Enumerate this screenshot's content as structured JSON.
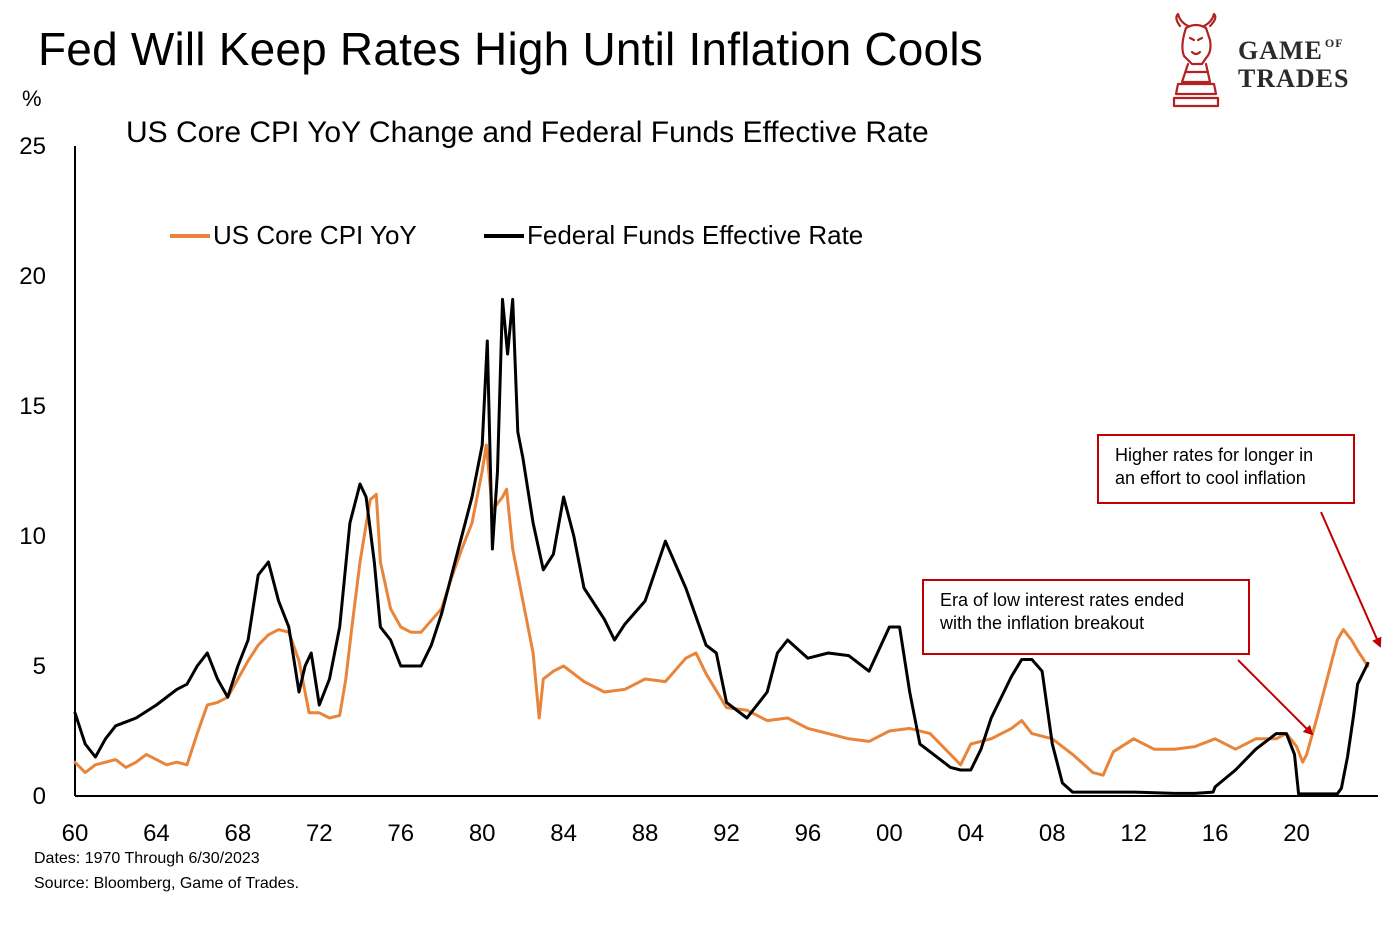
{
  "title": "Fed Will Keep Rates High Until Inflation Cools",
  "subtitle": "US Core CPI YoY Change and Federal Funds Effective Rate",
  "y_unit": "%",
  "notes": {
    "dates": "Dates: 1970 Through 6/30/2023",
    "source": "Source: Bloomberg, Game of Trades."
  },
  "logo": {
    "line1": "GAME",
    "of": "OF",
    "line2": "TRADES",
    "icon": "bull-knight-chess-icon"
  },
  "callouts": {
    "higher_rates": [
      "Higher rates for longer in",
      "an effort to cool inflation"
    ],
    "low_rates": [
      "Era of low interest rates ended",
      "with the inflation breakout"
    ]
  },
  "colors": {
    "cpi": "#E8853A",
    "ffr": "#000000",
    "annotation": "#C00000",
    "logo": "#B22222"
  },
  "chart_data": {
    "type": "line",
    "title": "US Core CPI YoY Change and Federal Funds Effective Rate",
    "xlabel": "",
    "ylabel": "%",
    "xlim": [
      1960,
      2024
    ],
    "ylim": [
      0,
      25
    ],
    "x_ticks": [
      1960,
      1964,
      1968,
      1972,
      1976,
      1980,
      1984,
      1988,
      1992,
      1996,
      2000,
      2004,
      2008,
      2012,
      2016,
      2020
    ],
    "x_tick_labels": [
      "60",
      "64",
      "68",
      "72",
      "76",
      "80",
      "84",
      "88",
      "92",
      "96",
      "00",
      "04",
      "08",
      "12",
      "16",
      "20"
    ],
    "y_ticks": [
      0,
      5,
      10,
      15,
      20,
      25
    ],
    "y_tick_labels": [
      "0",
      "5",
      "10",
      "15",
      "20",
      "25"
    ],
    "legend_position": "top-left",
    "series": [
      {
        "name": "US Core CPI YoY",
        "color": "#E8853A",
        "x": [
          1960,
          1960.5,
          1961,
          1962,
          1962.5,
          1963,
          1963.5,
          1964,
          1964.5,
          1965,
          1965.5,
          1966,
          1966.5,
          1967,
          1967.5,
          1968,
          1968.5,
          1969,
          1969.5,
          1970,
          1970.5,
          1971,
          1971.5,
          1972,
          1972.5,
          1973,
          1973.3,
          1973.6,
          1974,
          1974.5,
          1974.8,
          1975,
          1975.5,
          1976,
          1976.5,
          1977,
          1978,
          1978.5,
          1979,
          1979.5,
          1980,
          1980.2,
          1980.5,
          1981,
          1981.2,
          1981.5,
          1982,
          1982.5,
          1982.8,
          1983,
          1983.5,
          1984,
          1985,
          1986,
          1987,
          1988,
          1989,
          1990,
          1990.5,
          1991,
          1992,
          1993,
          1994,
          1995,
          1996,
          1997,
          1998,
          1999,
          2000,
          2001,
          2002,
          2003,
          2003.5,
          2004,
          2005,
          2006,
          2006.5,
          2007,
          2008,
          2009,
          2010,
          2010.5,
          2011,
          2012,
          2013,
          2014,
          2015,
          2016,
          2017,
          2018,
          2019,
          2019.5,
          2020,
          2020.3,
          2020.5,
          2021,
          2021.5,
          2022,
          2022.3,
          2022.7,
          2023,
          2023.5
        ],
        "values": [
          1.3,
          0.9,
          1.2,
          1.4,
          1.1,
          1.3,
          1.6,
          1.4,
          1.2,
          1.3,
          1.2,
          2.4,
          3.5,
          3.6,
          3.8,
          4.5,
          5.2,
          5.8,
          6.2,
          6.4,
          6.3,
          5.2,
          3.2,
          3.2,
          3.0,
          3.1,
          4.5,
          6.5,
          9.0,
          11.4,
          11.6,
          9.0,
          7.2,
          6.5,
          6.3,
          6.3,
          7.2,
          8.4,
          9.5,
          10.5,
          12.5,
          13.5,
          11.0,
          11.5,
          11.8,
          9.5,
          7.5,
          5.5,
          3.0,
          4.5,
          4.8,
          5.0,
          4.4,
          4.0,
          4.1,
          4.5,
          4.4,
          5.3,
          5.5,
          4.7,
          3.4,
          3.3,
          2.9,
          3.0,
          2.6,
          2.4,
          2.2,
          2.1,
          2.5,
          2.6,
          2.4,
          1.6,
          1.2,
          2.0,
          2.2,
          2.6,
          2.9,
          2.4,
          2.2,
          1.6,
          0.9,
          0.8,
          1.7,
          2.2,
          1.8,
          1.8,
          1.9,
          2.2,
          1.8,
          2.2,
          2.2,
          2.4,
          1.9,
          1.3,
          1.6,
          3.0,
          4.5,
          6.0,
          6.4,
          6.0,
          5.6,
          5.0
        ]
      },
      {
        "name": "Federal Funds Effective Rate",
        "color": "#000000",
        "x": [
          1960,
          1960.5,
          1961,
          1961.5,
          1962,
          1963,
          1964,
          1965,
          1965.5,
          1966,
          1966.5,
          1967,
          1967.5,
          1968,
          1968.5,
          1969,
          1969.5,
          1970,
          1970.5,
          1971,
          1971.3,
          1971.6,
          1972,
          1972.5,
          1973,
          1973.5,
          1974,
          1974.3,
          1974.7,
          1975,
          1975.5,
          1976,
          1976.5,
          1977,
          1977.5,
          1978,
          1978.5,
          1979,
          1979.5,
          1980,
          1980.25,
          1980.5,
          1980.75,
          1981,
          1981.25,
          1981.5,
          1981.75,
          1982,
          1982.5,
          1983,
          1983.5,
          1984,
          1984.5,
          1985,
          1986,
          1986.5,
          1987,
          1988,
          1989,
          1989.5,
          1990,
          1991,
          1991.5,
          1992,
          1993,
          1994,
          1994.5,
          1995,
          1996,
          1997,
          1998,
          1999,
          2000,
          2000.5,
          2001,
          2001.5,
          2002,
          2003,
          2003.5,
          2004,
          2004.5,
          2005,
          2006,
          2006.5,
          2007,
          2007.5,
          2008,
          2008.5,
          2009,
          2010,
          2012,
          2014,
          2015,
          2015.9,
          2016,
          2017,
          2018,
          2019,
          2019.5,
          2019.9,
          2020.1,
          2021,
          2022,
          2022.2,
          2022.5,
          2022.8,
          2023,
          2023.5
        ],
        "values": [
          3.2,
          2.0,
          1.5,
          2.2,
          2.7,
          3.0,
          3.5,
          4.1,
          4.3,
          5.0,
          5.5,
          4.5,
          3.8,
          5.0,
          6.0,
          8.5,
          9.0,
          7.5,
          6.5,
          4.0,
          5.0,
          5.5,
          3.5,
          4.5,
          6.5,
          10.5,
          12.0,
          11.5,
          9.0,
          6.5,
          6.0,
          5.0,
          5.0,
          5.0,
          5.8,
          7.0,
          8.5,
          10.0,
          11.5,
          13.5,
          17.5,
          9.5,
          12.5,
          19.1,
          17.0,
          19.1,
          14.0,
          13.0,
          10.5,
          8.7,
          9.3,
          11.5,
          10.0,
          8.0,
          6.8,
          6.0,
          6.6,
          7.5,
          9.8,
          8.9,
          8.0,
          5.8,
          5.5,
          3.6,
          3.0,
          4.0,
          5.5,
          6.0,
          5.3,
          5.5,
          5.4,
          4.8,
          6.5,
          6.5,
          4.0,
          2.0,
          1.7,
          1.1,
          1.0,
          1.0,
          1.8,
          3.0,
          4.6,
          5.25,
          5.25,
          4.8,
          2.0,
          0.5,
          0.15,
          0.15,
          0.15,
          0.1,
          0.1,
          0.15,
          0.35,
          1.0,
          1.8,
          2.4,
          2.4,
          1.6,
          0.08,
          0.08,
          0.08,
          0.3,
          1.5,
          3.1,
          4.3,
          5.1
        ]
      }
    ],
    "annotations": [
      "Higher rates for longer in an effort to cool inflation",
      "Era of low interest rates ended with the inflation breakout"
    ]
  }
}
